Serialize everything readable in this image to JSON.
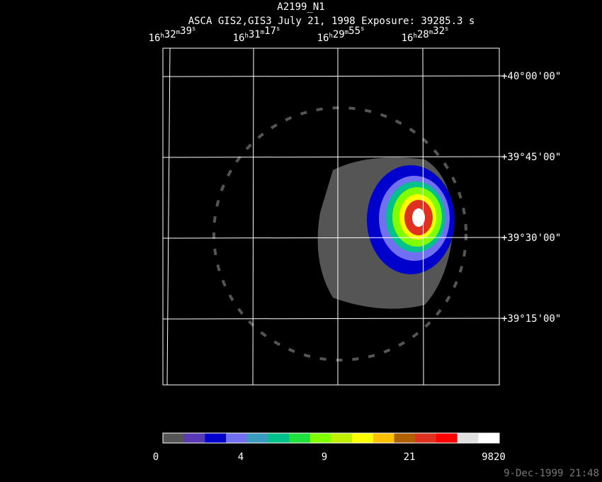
{
  "header": {
    "title": "A2199_N1",
    "subtitle": "ASCA GIS2,GIS3 July 21, 1998 Exposure: 39285.3 s"
  },
  "ra_labels": [
    "16h32m39s",
    "16h31m17s",
    "16h29m55s",
    "16h28m32s"
  ],
  "dec_labels": [
    "+40°00'00\"",
    "+39°45'00\"",
    "+39°30'00\"",
    "+39°15'00\""
  ],
  "colorbar": {
    "colors": [
      "#555555",
      "#5a3ab4",
      "#0000cc",
      "#7070f0",
      "#3c9cc0",
      "#00c08c",
      "#20e040",
      "#80ff00",
      "#c0f000",
      "#ffff00",
      "#ffc000",
      "#b06000",
      "#e03020",
      "#ff0000",
      "#e0e0e0",
      "#ffffff"
    ],
    "labels": [
      0,
      4,
      9,
      21,
      9820
    ]
  },
  "footer": "9-Dec-1999 21:48"
}
